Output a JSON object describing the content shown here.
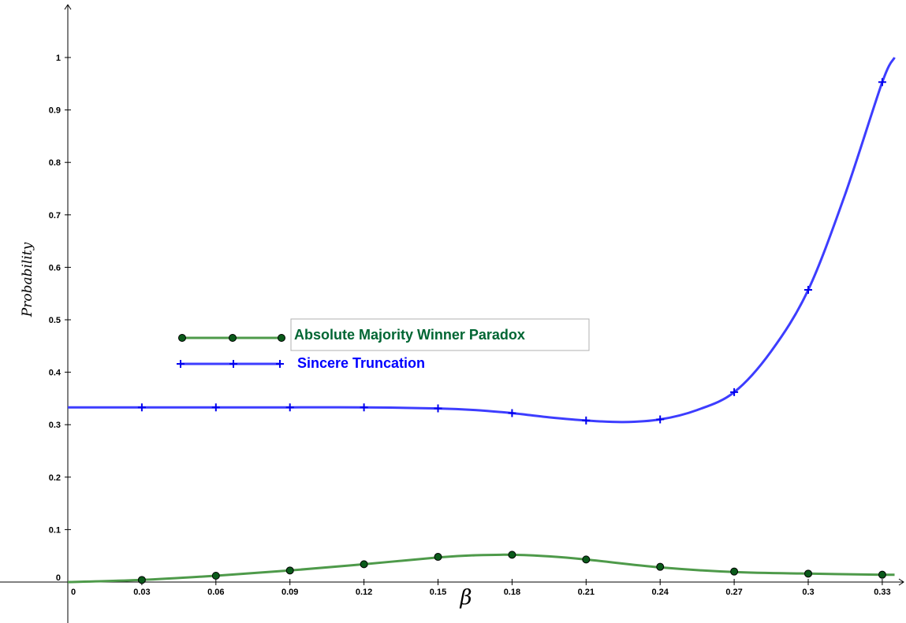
{
  "chart_data": {
    "type": "line",
    "xlabel": "β",
    "ylabel": "Probability",
    "xlim": [
      0,
      0.335
    ],
    "ylim": [
      -0.01,
      1.02
    ],
    "x_ticks": [
      "0",
      "0.03",
      "0.06",
      "0.09",
      "0.12",
      "0.15",
      "0.18",
      "0.21",
      "0.24",
      "0.27",
      "0.3",
      "0.33"
    ],
    "y_ticks": [
      "0",
      "0.1",
      "0.2",
      "0.3",
      "0.4",
      "0.5",
      "0.6",
      "0.7",
      "0.8",
      "0.9",
      "1"
    ],
    "grid": false,
    "legend_position": "center-left",
    "series": [
      {
        "name": "Absolute Majority Winner Paradox",
        "color": "#4e9a4a",
        "marker": "circle",
        "marker_color": "#0a5a1a",
        "curve": [
          [
            0,
            0
          ],
          [
            0.03,
            0.004
          ],
          [
            0.06,
            0.012
          ],
          [
            0.09,
            0.022
          ],
          [
            0.12,
            0.034
          ],
          [
            0.15,
            0.047
          ],
          [
            0.165,
            0.051
          ],
          [
            0.18,
            0.052
          ],
          [
            0.195,
            0.049
          ],
          [
            0.21,
            0.043
          ],
          [
            0.24,
            0.028
          ],
          [
            0.27,
            0.019
          ],
          [
            0.3,
            0.016
          ],
          [
            0.33,
            0.014
          ],
          [
            0.335,
            0.014
          ]
        ],
        "points": [
          [
            0.03,
            0.004
          ],
          [
            0.06,
            0.012
          ],
          [
            0.09,
            0.022
          ],
          [
            0.12,
            0.034
          ],
          [
            0.15,
            0.048
          ],
          [
            0.18,
            0.052
          ],
          [
            0.21,
            0.043
          ],
          [
            0.24,
            0.029
          ],
          [
            0.27,
            0.02
          ],
          [
            0.3,
            0.016
          ],
          [
            0.33,
            0.014
          ]
        ]
      },
      {
        "name": "Sincere Truncation",
        "color": "#3d3dff",
        "marker": "plus",
        "marker_color": "#0000ee",
        "curve": [
          [
            0,
            0.333
          ],
          [
            0.03,
            0.333
          ],
          [
            0.06,
            0.333
          ],
          [
            0.09,
            0.333
          ],
          [
            0.12,
            0.333
          ],
          [
            0.15,
            0.331
          ],
          [
            0.165,
            0.328
          ],
          [
            0.18,
            0.322
          ],
          [
            0.195,
            0.314
          ],
          [
            0.21,
            0.308
          ],
          [
            0.225,
            0.305
          ],
          [
            0.24,
            0.31
          ],
          [
            0.255,
            0.328
          ],
          [
            0.27,
            0.362
          ],
          [
            0.285,
            0.44
          ],
          [
            0.3,
            0.557
          ],
          [
            0.315,
            0.74
          ],
          [
            0.33,
            0.953
          ],
          [
            0.335,
            1.0
          ]
        ],
        "points": [
          [
            0.03,
            0.333
          ],
          [
            0.06,
            0.333
          ],
          [
            0.09,
            0.333
          ],
          [
            0.12,
            0.333
          ],
          [
            0.15,
            0.331
          ],
          [
            0.18,
            0.322
          ],
          [
            0.21,
            0.308
          ],
          [
            0.24,
            0.31
          ],
          [
            0.27,
            0.362
          ],
          [
            0.3,
            0.557
          ],
          [
            0.33,
            0.953
          ]
        ]
      }
    ]
  }
}
